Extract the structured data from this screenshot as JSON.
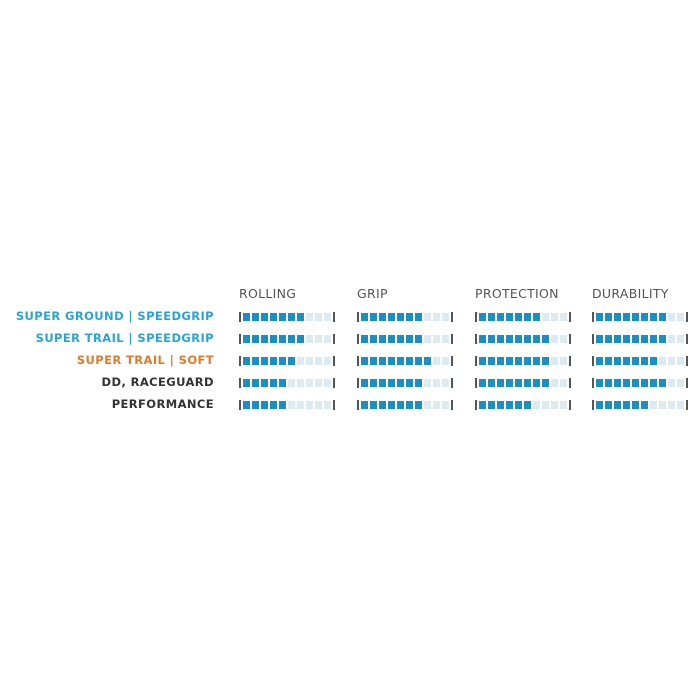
{
  "chart_data": {
    "type": "table",
    "scale_max": 10,
    "columns": [
      "ROLLING",
      "GRIP",
      "PROTECTION",
      "DURABILITY"
    ],
    "rows": [
      {
        "label": "SUPER GROUND | SPEEDGRIP",
        "color": "#2aa3d6",
        "values": [
          7,
          7,
          7,
          8
        ]
      },
      {
        "label": "SUPER TRAIL | SPEEDGRIP",
        "color": "#2aa3d6",
        "values": [
          7,
          7,
          8,
          8
        ]
      },
      {
        "label": "SUPER TRAIL | SOFT",
        "color": "#e07b2c",
        "values": [
          6,
          8,
          8,
          7
        ]
      },
      {
        "label": "DD, RACEGUARD",
        "color": "#333333",
        "values": [
          5,
          7,
          8,
          8
        ]
      },
      {
        "label": "PERFORMANCE",
        "color": "#333333",
        "values": [
          5,
          7,
          6,
          6
        ]
      }
    ],
    "colors": {
      "filled": "#1a8fc4",
      "empty": "#dceaf2",
      "cap": "#555555"
    }
  }
}
